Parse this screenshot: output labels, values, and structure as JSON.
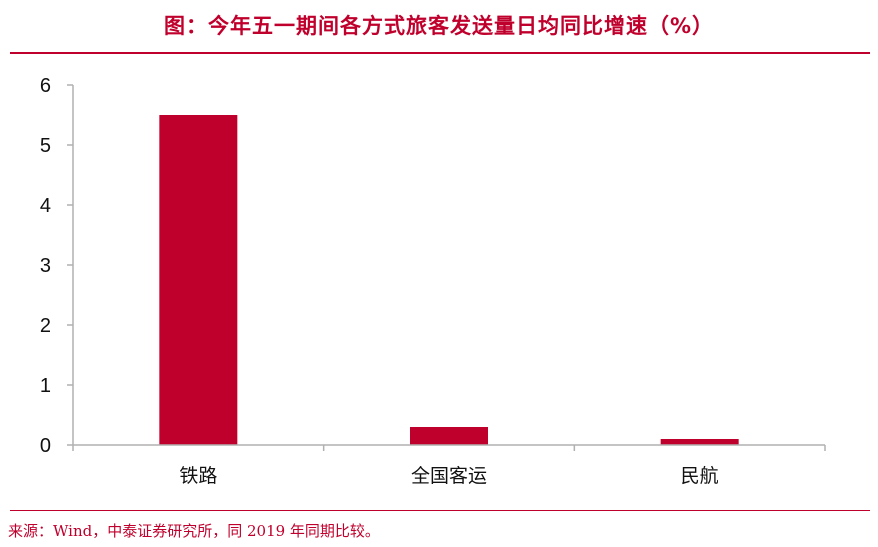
{
  "chart_data": {
    "type": "bar",
    "title": "图：今年五一期间各方式旅客发送量日均同比增速（%）",
    "categories": [
      "铁路",
      "全国客运",
      "民航"
    ],
    "values": [
      5.5,
      0.3,
      0.1
    ],
    "ylim": [
      0,
      6
    ],
    "yticks": [
      0,
      1,
      2,
      3,
      4,
      5,
      6
    ],
    "ytick_labels": [
      "0",
      "1",
      "2",
      "3",
      "4",
      "5",
      "6"
    ],
    "xlabel": "",
    "ylabel": "",
    "grid": false,
    "legend": "none",
    "bar_color": "#c0002c"
  },
  "source": "来源：Wind，中泰证券研究所，同 2019 年同期比较。"
}
